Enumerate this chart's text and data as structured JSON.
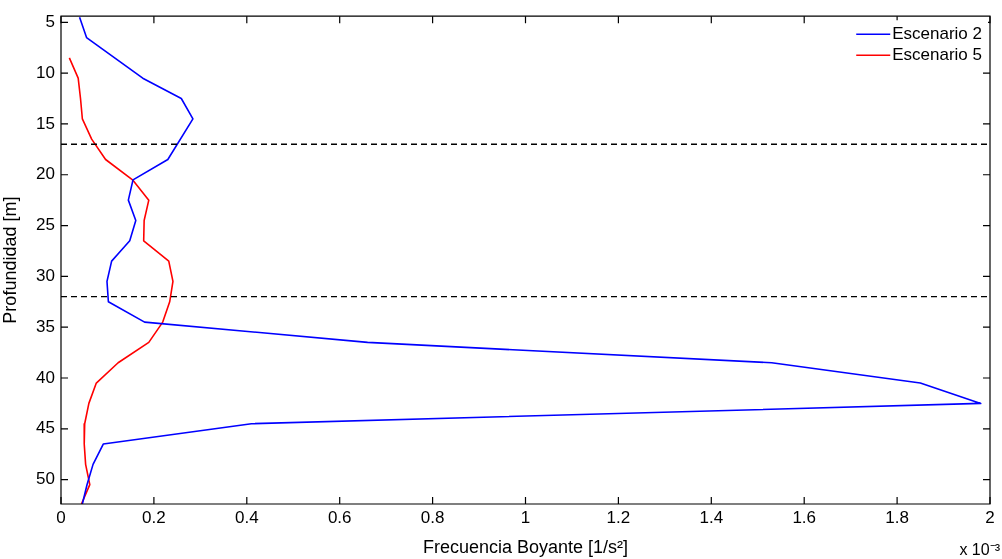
{
  "chart_data": {
    "type": "line",
    "orientation": "horizontal",
    "xlabel": "Frecuencia Boyante [1/s²]",
    "ylabel": "Profundidad [m]",
    "xlim": [
      0,
      2
    ],
    "xticks": [
      0,
      0.2,
      0.4,
      0.6,
      0.8,
      1,
      1.2,
      1.4,
      1.6,
      1.8,
      2
    ],
    "ylim": [
      52.4,
      4.4
    ],
    "yticks": [
      5,
      10,
      15,
      20,
      25,
      30,
      35,
      40,
      45,
      50
    ],
    "grid": false,
    "legend": "top right",
    "marker": "none",
    "line_style": "solid",
    "annotations": [
      "x 10⁻³"
    ],
    "ref_lines": [
      {
        "axis": "y",
        "value": 17,
        "color": "#000000",
        "line_style": "dashed"
      },
      {
        "axis": "y",
        "value": 32,
        "color": "#000000",
        "line_style": "dashed"
      }
    ],
    "series": [
      {
        "name": "Escenario 2",
        "color": "#0000ff",
        "x": [
          4.5,
          6.5,
          10.5,
          12.5,
          14.5,
          18.5,
          20.5,
          22.5,
          24.5,
          26.5,
          28.5,
          30.5,
          32.5,
          34.5,
          36.5,
          38.5,
          40.5,
          42.5,
          44.5,
          46.5,
          48.5,
          50.5,
          52.4
        ],
        "values": [
          0.04,
          0.055,
          0.176,
          0.259,
          0.284,
          0.23,
          0.155,
          0.145,
          0.161,
          0.148,
          0.109,
          0.099,
          0.102,
          0.18,
          0.66,
          1.53,
          1.85,
          1.98,
          0.41,
          0.091,
          0.069,
          0.056,
          0.046
        ]
      },
      {
        "name": "Escenario 5",
        "color": "#ff0000",
        "x": [
          8.5,
          10.5,
          12.5,
          14.5,
          16.5,
          18.5,
          20.5,
          22.5,
          24.5,
          26.5,
          28.5,
          30.5,
          32.5,
          34.5,
          36.5,
          38.5,
          40.5,
          42.5,
          44.5,
          46.5,
          48.5,
          50.5,
          52.4
        ],
        "values": [
          0.018,
          0.037,
          0.042,
          0.046,
          0.066,
          0.096,
          0.154,
          0.189,
          0.179,
          0.178,
          0.232,
          0.241,
          0.234,
          0.219,
          0.189,
          0.123,
          0.076,
          0.06,
          0.051,
          0.05,
          0.053,
          0.062,
          0.044
        ]
      }
    ]
  }
}
